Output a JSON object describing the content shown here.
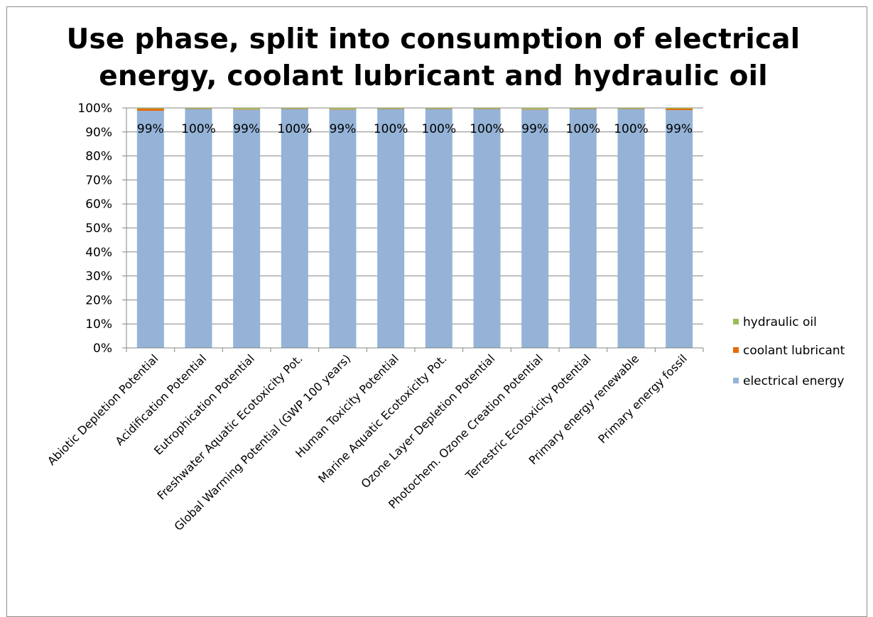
{
  "chart_data": {
    "type": "bar",
    "stacked": true,
    "percent": true,
    "title_lines": [
      "Use phase, split into consumption of electrical",
      "energy, coolant lubricant and hydraulic oil"
    ],
    "categories": [
      "Abiotic Depletion Potential",
      "Acidification Potential",
      "Eutrophication Potential",
      "Freshwater Aquatic Ecotoxicity Pot.",
      "Global Warming Potential (GWP 100 years)",
      "Human Toxicity Potential",
      "Marine Aquatic Ecotoxicity Pot.",
      "Ozone Layer Depletion Potential",
      "Photochem. Ozone Creation Potential",
      "Terrestric Ecotoxicity Potential",
      "Primary energy renewable",
      "Primary energy fossil"
    ],
    "series": [
      {
        "name": "electrical energy",
        "color": "#95b3d7",
        "values": [
          98.8,
          99.6,
          99.3,
          99.6,
          99.3,
          99.6,
          99.6,
          99.6,
          99.3,
          99.6,
          99.6,
          99.1
        ]
      },
      {
        "name": "coolant lubricant",
        "color": "#e46c0a",
        "values": [
          0.9,
          0.1,
          0.2,
          0.1,
          0.2,
          0.1,
          0.1,
          0.1,
          0.2,
          0.1,
          0.1,
          0.6
        ]
      },
      {
        "name": "hydraulic oil",
        "color": "#9bbb59",
        "values": [
          0.3,
          0.3,
          0.5,
          0.3,
          0.5,
          0.3,
          0.3,
          0.3,
          0.5,
          0.3,
          0.3,
          0.3
        ]
      }
    ],
    "data_labels": [
      "99%",
      "100%",
      "99%",
      "100%",
      "99%",
      "100%",
      "100%",
      "100%",
      "99%",
      "100%",
      "100%",
      "99%"
    ],
    "y_ticks": [
      "0%",
      "10%",
      "20%",
      "30%",
      "40%",
      "50%",
      "60%",
      "70%",
      "80%",
      "90%",
      "100%"
    ],
    "ylim": [
      0,
      100
    ],
    "legend_order": [
      "hydraulic oil",
      "coolant lubricant",
      "electrical energy"
    ],
    "legend_position": "right",
    "grid": true,
    "gridline_color": "#868686",
    "axis_color": "#868686"
  }
}
